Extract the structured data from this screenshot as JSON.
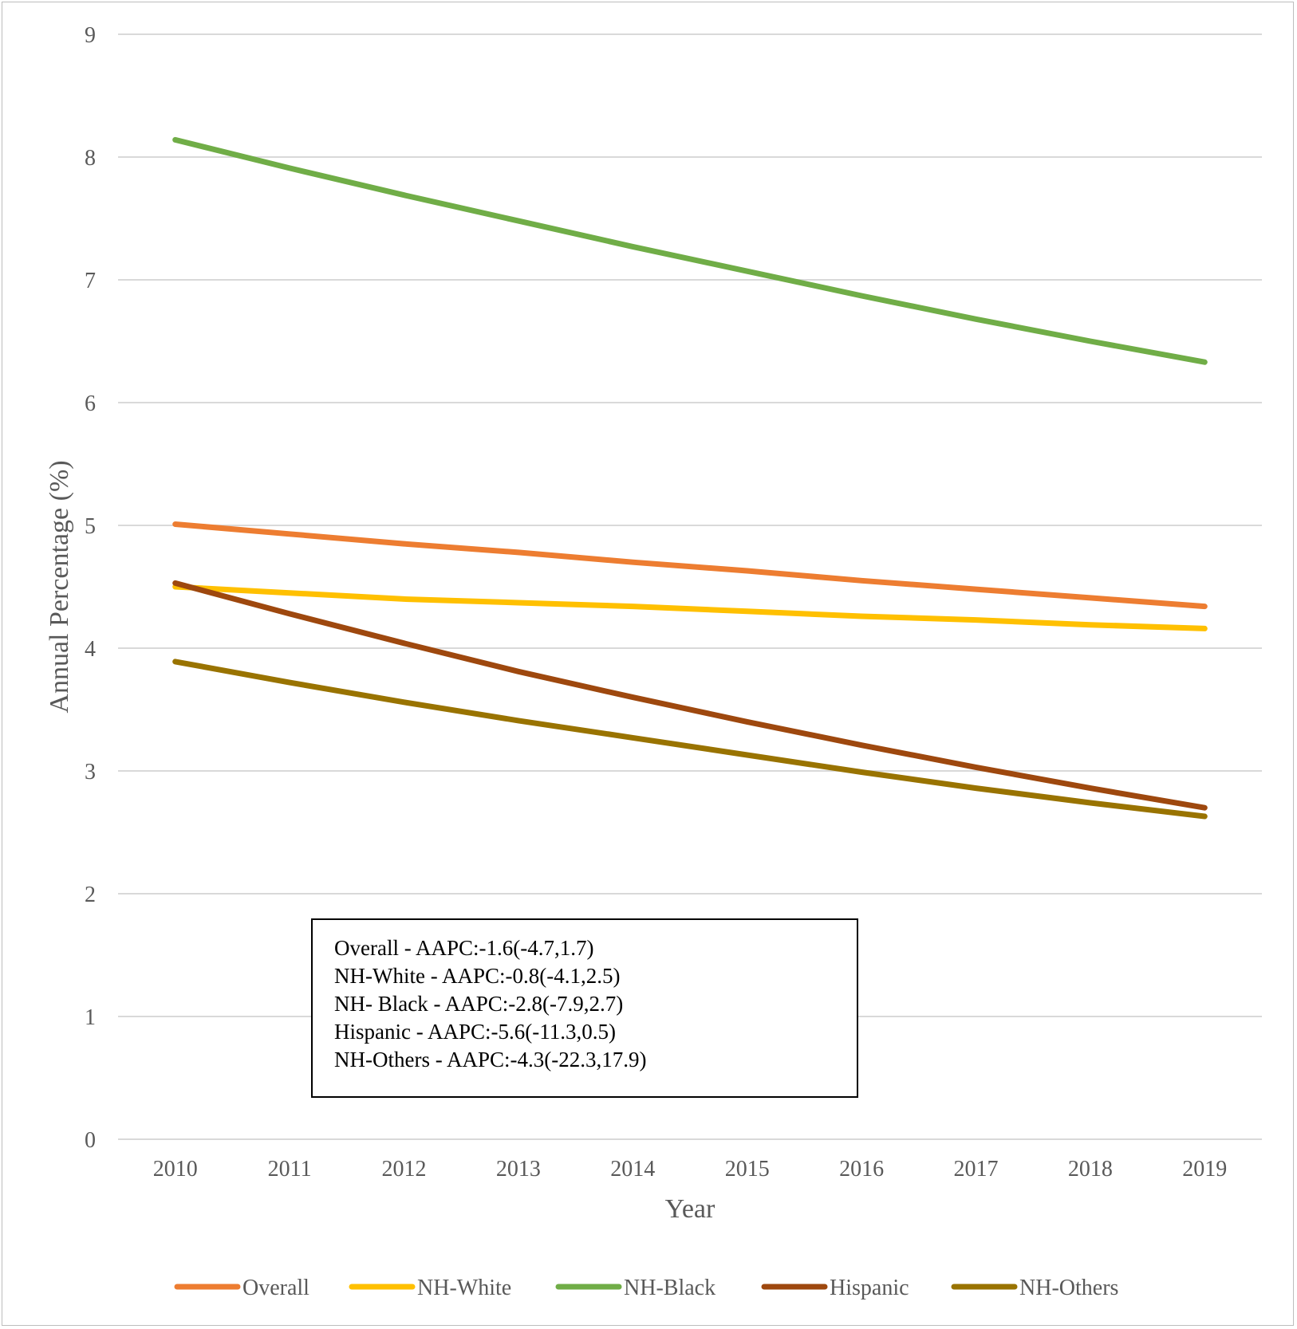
{
  "chart_data": {
    "type": "line",
    "title": "",
    "xlabel": "Year",
    "ylabel": "Annual Percentage (%)",
    "ylim": [
      0,
      9
    ],
    "yticks": [
      "0",
      "1",
      "2",
      "3",
      "4",
      "5",
      "6",
      "7",
      "8",
      "9"
    ],
    "categories": [
      "2010",
      "2011",
      "2012",
      "2013",
      "2014",
      "2015",
      "2016",
      "2017",
      "2018",
      "2019"
    ],
    "grid": true,
    "legend_position": "bottom",
    "series": [
      {
        "name": "Overall",
        "color": "#ED7D31",
        "values": [
          5.01,
          4.93,
          4.85,
          4.78,
          4.7,
          4.63,
          4.55,
          4.48,
          4.41,
          4.34
        ]
      },
      {
        "name": "NH-White",
        "color": "#FFC000",
        "values": [
          4.5,
          4.45,
          4.4,
          4.37,
          4.34,
          4.3,
          4.26,
          4.23,
          4.19,
          4.16
        ]
      },
      {
        "name": "NH-Black",
        "color": "#70AD47",
        "values": [
          8.14,
          7.91,
          7.69,
          7.48,
          7.27,
          7.07,
          6.87,
          6.68,
          6.5,
          6.33
        ]
      },
      {
        "name": "Hispanic",
        "color": "#9E480E",
        "values": [
          4.53,
          4.28,
          4.04,
          3.81,
          3.6,
          3.4,
          3.21,
          3.03,
          2.86,
          2.7
        ]
      },
      {
        "name": "NH-Others",
        "color": "#997300",
        "values": [
          3.89,
          3.72,
          3.56,
          3.41,
          3.27,
          3.13,
          2.99,
          2.86,
          2.74,
          2.63
        ]
      }
    ],
    "annotations": [
      "Overall - AAPC:-1.6(-4.7,1.7)",
      "NH-White - AAPC:-0.8(-4.1,2.5)",
      "NH- Black - AAPC:-2.8(-7.9,2.7)",
      "Hispanic - AAPC:-5.6(-11.3,0.5)",
      "NH-Others - AAPC:-4.3(-22.3,17.9)"
    ]
  }
}
